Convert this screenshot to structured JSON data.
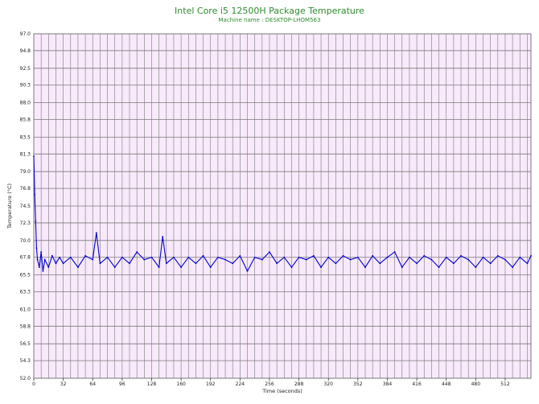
{
  "chart_data": {
    "type": "line",
    "title": "Intel Core i5 12500H Package Temperature",
    "subtitle": "Machine name : DESKTOP-LHOM563",
    "xlabel": "Time (seconds)",
    "ylabel": "Temperature (°C)",
    "xlim": [
      0,
      540
    ],
    "ylim": [
      52.0,
      97.0
    ],
    "grid": true,
    "xticks": [
      0,
      32,
      64,
      96,
      128,
      160,
      192,
      224,
      256,
      288,
      320,
      352,
      384,
      416,
      448,
      480,
      512
    ],
    "yticks": [
      52.0,
      54.3,
      56.5,
      58.8,
      61.0,
      63.3,
      65.5,
      67.8,
      70.0,
      72.3,
      74.5,
      76.8,
      79.0,
      81.3,
      83.5,
      85.8,
      88.0,
      90.3,
      92.5,
      94.8,
      97.0
    ],
    "series": [
      {
        "name": "",
        "color": "#0000cc",
        "x": [
          0,
          1,
          2,
          3,
          4,
          6,
          8,
          10,
          12,
          16,
          20,
          24,
          28,
          32,
          40,
          48,
          56,
          64,
          68,
          72,
          80,
          88,
          96,
          104,
          112,
          120,
          128,
          136,
          140,
          144,
          152,
          160,
          168,
          176,
          184,
          192,
          200,
          208,
          216,
          224,
          232,
          240,
          248,
          256,
          264,
          272,
          280,
          288,
          296,
          304,
          312,
          320,
          328,
          336,
          344,
          352,
          360,
          368,
          376,
          384,
          392,
          400,
          408,
          416,
          424,
          432,
          440,
          448,
          456,
          464,
          472,
          480,
          488,
          496,
          504,
          512,
          520,
          528,
          536,
          540
        ],
        "y": [
          81.0,
          76.0,
          72.5,
          69.0,
          67.5,
          66.5,
          68.5,
          66.0,
          67.5,
          66.5,
          68.0,
          67.0,
          67.8,
          67.0,
          67.8,
          66.5,
          68.0,
          67.5,
          71.0,
          67.0,
          67.8,
          66.5,
          67.8,
          67.0,
          68.5,
          67.5,
          67.8,
          66.5,
          70.5,
          67.0,
          67.8,
          66.5,
          67.8,
          67.0,
          68.0,
          66.5,
          67.8,
          67.5,
          67.0,
          68.0,
          66.0,
          67.8,
          67.5,
          68.5,
          67.0,
          67.8,
          66.5,
          67.8,
          67.5,
          68.0,
          66.5,
          67.8,
          67.0,
          68.0,
          67.5,
          67.8,
          66.5,
          68.0,
          67.0,
          67.8,
          68.5,
          66.5,
          67.8,
          67.0,
          68.0,
          67.5,
          66.5,
          67.8,
          67.0,
          68.0,
          67.5,
          66.5,
          67.8,
          67.0,
          68.0,
          67.5,
          66.5,
          67.8,
          67.0,
          68.0
        ]
      }
    ]
  }
}
